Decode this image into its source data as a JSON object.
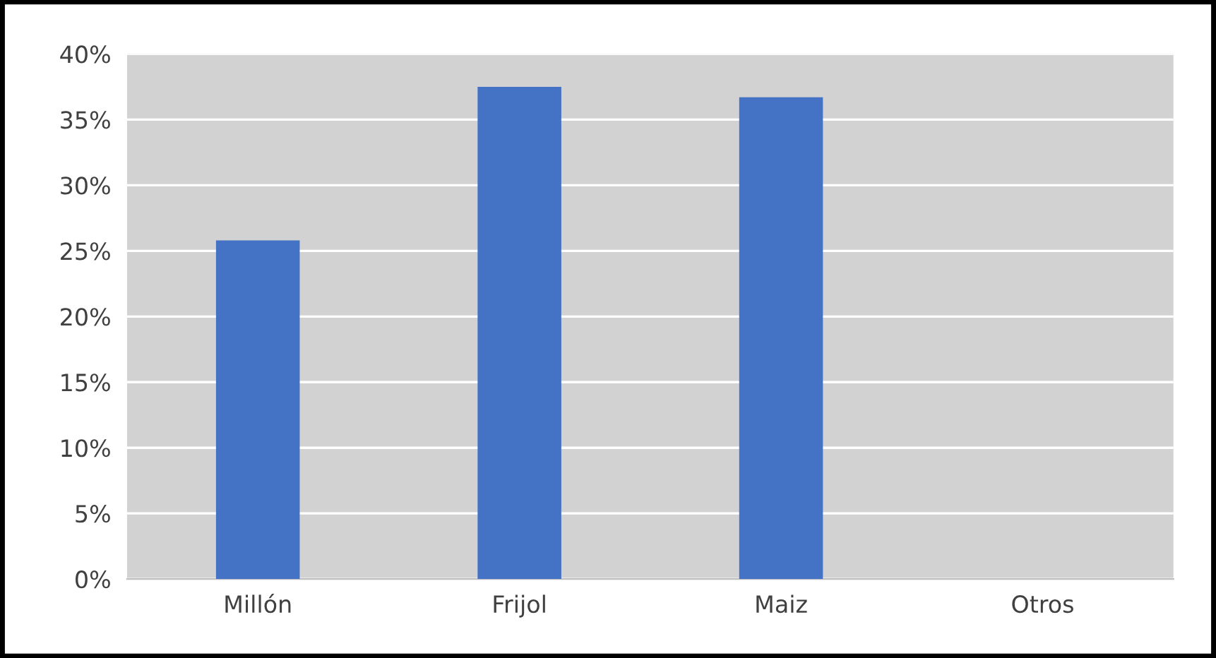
{
  "chart_data": {
    "type": "bar",
    "categories": [
      "Millón",
      "Frijol",
      "Maiz",
      "Otros"
    ],
    "values": [
      25.8,
      37.5,
      36.7,
      0
    ],
    "color": "#4472c4",
    "ylim": [
      0,
      40
    ],
    "yticks": [
      {
        "value": 0,
        "label": "0%"
      },
      {
        "value": 5,
        "label": "5%"
      },
      {
        "value": 10,
        "label": "10%"
      },
      {
        "value": 15,
        "label": "15%"
      },
      {
        "value": 20,
        "label": "20%"
      },
      {
        "value": 25,
        "label": "25%"
      },
      {
        "value": 30,
        "label": "30%"
      },
      {
        "value": 35,
        "label": "35%"
      },
      {
        "value": 40,
        "label": "40%"
      }
    ],
    "grid": "y"
  }
}
